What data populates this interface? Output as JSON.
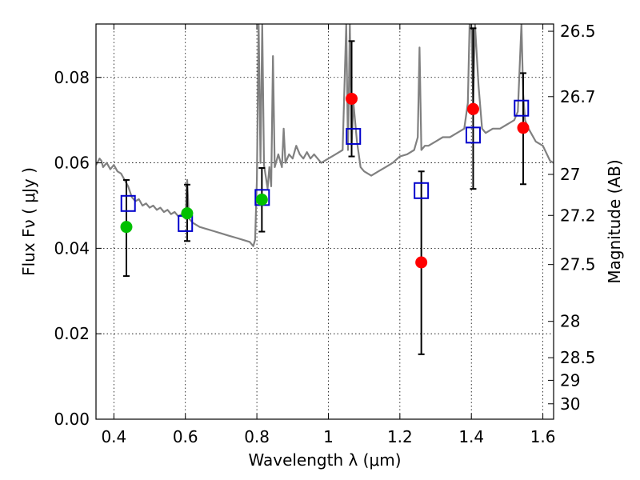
{
  "chart_data": {
    "type": "scatter",
    "xlabel": "Wavelength  λ (μm)",
    "ylabel": "Flux  Fν  ( μJy )",
    "ylabel_right": "Magnitude (AB)",
    "xlim": [
      0.35,
      1.63
    ],
    "ylim": [
      0.0,
      0.0925
    ],
    "x_ticks": [
      0.4,
      0.6,
      0.8,
      1.0,
      1.2,
      1.4,
      1.6
    ],
    "x_tick_labels": [
      "0.4",
      "0.6",
      "0.8",
      "1",
      "1.2",
      "1.4",
      "1.6"
    ],
    "y_ticks": [
      0.0,
      0.02,
      0.04,
      0.06,
      0.08
    ],
    "y_tick_labels": [
      "0.00",
      "0.02",
      "0.04",
      "0.06",
      "0.08"
    ],
    "right_ticks": [
      {
        "label": "26.5",
        "flux": 0.0908
      },
      {
        "label": "26.7",
        "flux": 0.0755
      },
      {
        "label": "27",
        "flux": 0.0573
      },
      {
        "label": "27.2",
        "flux": 0.0477
      },
      {
        "label": "27.5",
        "flux": 0.0362
      },
      {
        "label": "28",
        "flux": 0.0229
      },
      {
        "label": "28.5",
        "flux": 0.0144
      },
      {
        "label": "29",
        "flux": 0.0091
      },
      {
        "label": "30",
        "flux": 0.0036
      }
    ],
    "grid": true,
    "colors": {
      "spectrum": "#808080",
      "measured_red": "#ff0000",
      "measured_green": "#00c000",
      "model": "#0000cc",
      "errorbar": "#000000"
    },
    "observed": [
      {
        "x": 0.435,
        "y": 0.045,
        "err_low": 0.0115,
        "err_high": 0.011,
        "color": "green"
      },
      {
        "x": 0.605,
        "y": 0.0482,
        "err_low": 0.0065,
        "err_high": 0.0067,
        "color": "green"
      },
      {
        "x": 0.814,
        "y": 0.0514,
        "err_low": 0.0075,
        "err_high": 0.0074,
        "color": "green"
      },
      {
        "x": 1.065,
        "y": 0.075,
        "err_low": 0.0135,
        "err_high": 0.0135,
        "color": "red"
      },
      {
        "x": 1.26,
        "y": 0.0367,
        "err_low": 0.0215,
        "err_high": 0.0213,
        "color": "red"
      },
      {
        "x": 1.405,
        "y": 0.0726,
        "err_low": 0.0187,
        "err_high": 0.0189,
        "color": "red"
      },
      {
        "x": 1.545,
        "y": 0.0682,
        "err_low": 0.0132,
        "err_high": 0.0128,
        "color": "red"
      }
    ],
    "model_points": [
      {
        "x": 0.44,
        "y": 0.0505
      },
      {
        "x": 0.6,
        "y": 0.0458
      },
      {
        "x": 0.815,
        "y": 0.0519
      },
      {
        "x": 1.07,
        "y": 0.0662
      },
      {
        "x": 1.26,
        "y": 0.0535
      },
      {
        "x": 1.405,
        "y": 0.0665
      },
      {
        "x": 1.54,
        "y": 0.0728
      }
    ],
    "spectrum": {
      "x": [
        0.35,
        0.36,
        0.365,
        0.37,
        0.38,
        0.39,
        0.4,
        0.41,
        0.42,
        0.43,
        0.44,
        0.45,
        0.46,
        0.47,
        0.48,
        0.49,
        0.5,
        0.51,
        0.52,
        0.53,
        0.54,
        0.55,
        0.56,
        0.57,
        0.58,
        0.59,
        0.6,
        0.605,
        0.61,
        0.62,
        0.64,
        0.66,
        0.68,
        0.7,
        0.72,
        0.74,
        0.76,
        0.78,
        0.79,
        0.795,
        0.8,
        0.805,
        0.81,
        0.815,
        0.82,
        0.83,
        0.835,
        0.84,
        0.845,
        0.85,
        0.86,
        0.87,
        0.875,
        0.88,
        0.89,
        0.9,
        0.91,
        0.92,
        0.93,
        0.94,
        0.95,
        0.96,
        0.98,
        1.0,
        1.02,
        1.04,
        1.05,
        1.055,
        1.06,
        1.065,
        1.07,
        1.08,
        1.09,
        1.1,
        1.12,
        1.14,
        1.16,
        1.18,
        1.2,
        1.22,
        1.24,
        1.25,
        1.255,
        1.26,
        1.27,
        1.28,
        1.3,
        1.32,
        1.34,
        1.36,
        1.38,
        1.39,
        1.395,
        1.4,
        1.405,
        1.41,
        1.42,
        1.43,
        1.44,
        1.46,
        1.48,
        1.5,
        1.52,
        1.53,
        1.54,
        1.545,
        1.55,
        1.56,
        1.58,
        1.6,
        1.62,
        1.63
      ],
      "y": [
        0.0595,
        0.061,
        0.0605,
        0.059,
        0.06,
        0.0585,
        0.0595,
        0.058,
        0.0575,
        0.056,
        0.0545,
        0.052,
        0.051,
        0.0515,
        0.05,
        0.0505,
        0.0495,
        0.05,
        0.049,
        0.0495,
        0.0485,
        0.049,
        0.048,
        0.0485,
        0.0475,
        0.048,
        0.047,
        0.056,
        0.047,
        0.046,
        0.045,
        0.0445,
        0.044,
        0.0435,
        0.043,
        0.0425,
        0.042,
        0.0415,
        0.0405,
        0.042,
        0.056,
        0.0925,
        0.06,
        0.0925,
        0.0595,
        0.054,
        0.059,
        0.0545,
        0.085,
        0.059,
        0.062,
        0.059,
        0.068,
        0.06,
        0.062,
        0.061,
        0.064,
        0.062,
        0.061,
        0.0625,
        0.061,
        0.062,
        0.06,
        0.061,
        0.062,
        0.063,
        0.0925,
        0.063,
        0.0925,
        0.064,
        0.074,
        0.065,
        0.059,
        0.058,
        0.057,
        0.058,
        0.059,
        0.06,
        0.0615,
        0.062,
        0.063,
        0.066,
        0.087,
        0.063,
        0.064,
        0.064,
        0.065,
        0.066,
        0.066,
        0.067,
        0.068,
        0.074,
        0.0925,
        0.0925,
        0.074,
        0.0925,
        0.078,
        0.068,
        0.067,
        0.068,
        0.068,
        0.069,
        0.07,
        0.072,
        0.0925,
        0.076,
        0.07,
        0.068,
        0.065,
        0.064,
        0.0605,
        0.06
      ]
    }
  }
}
